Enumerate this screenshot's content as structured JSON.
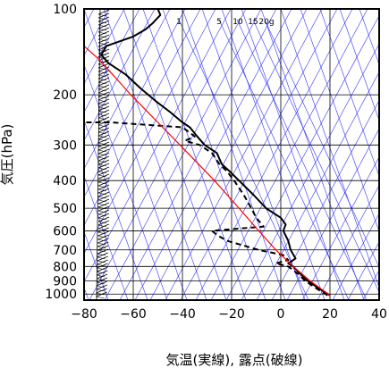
{
  "chart_data": {
    "type": "line",
    "subtype": "skew-t log-p sounding",
    "xlabel": "気温(実線), 露点(破線)",
    "ylabel": "気圧(hPa)",
    "xlim": [
      -80,
      40
    ],
    "ylim": [
      1050,
      100
    ],
    "y_scale": "log",
    "x_ticks": [
      -80,
      -60,
      -40,
      -20,
      0,
      20,
      40
    ],
    "x_tick_labels": [
      "−80",
      "−60",
      "−40",
      "−20",
      "0",
      "20",
      "40"
    ],
    "y_ticks": [
      100,
      200,
      300,
      400,
      500,
      600,
      700,
      800,
      900,
      1000
    ],
    "y_tick_labels": [
      "100",
      "200",
      "300",
      "400",
      "500",
      "600",
      "700",
      "800",
      "900",
      "1000"
    ],
    "mixing_ratio_labels": [
      "1",
      "5",
      "10",
      "15",
      "20g"
    ],
    "colors": {
      "grid": "#000000",
      "background_lines": "#3333ff",
      "parcel_curve": "#ff0000",
      "temperature": "#000000",
      "dewpoint": "#000000"
    },
    "series": [
      {
        "style": "solid",
        "points": [
          {
            "p": 1010,
            "t": 20
          },
          {
            "p": 950,
            "t": 15
          },
          {
            "p": 900,
            "t": 11
          },
          {
            "p": 850,
            "t": 8
          },
          {
            "p": 800,
            "t": 5
          },
          {
            "p": 780,
            "t": 3
          },
          {
            "p": 750,
            "t": 6
          },
          {
            "p": 700,
            "t": 4
          },
          {
            "p": 650,
            "t": 3
          },
          {
            "p": 600,
            "t": 1
          },
          {
            "p": 570,
            "t": 2
          },
          {
            "p": 540,
            "t": 0
          },
          {
            "p": 500,
            "t": -6
          },
          {
            "p": 450,
            "t": -11
          },
          {
            "p": 400,
            "t": -17
          },
          {
            "p": 370,
            "t": -21
          },
          {
            "p": 350,
            "t": -24
          },
          {
            "p": 320,
            "t": -26
          },
          {
            "p": 300,
            "t": -31
          },
          {
            "p": 280,
            "t": -34
          },
          {
            "p": 260,
            "t": -37
          },
          {
            "p": 250,
            "t": -40
          },
          {
            "p": 230,
            "t": -45
          },
          {
            "p": 210,
            "t": -51
          },
          {
            "p": 190,
            "t": -57
          },
          {
            "p": 170,
            "t": -63
          },
          {
            "p": 155,
            "t": -70
          },
          {
            "p": 145,
            "t": -73
          },
          {
            "p": 135,
            "t": -71
          },
          {
            "p": 125,
            "t": -60
          },
          {
            "p": 118,
            "t": -55
          },
          {
            "p": 112,
            "t": -52
          },
          {
            "p": 105,
            "t": -49
          },
          {
            "p": 100,
            "t": -50
          }
        ]
      },
      {
        "style": "dashed",
        "points": [
          {
            "p": 1010,
            "t": 19
          },
          {
            "p": 950,
            "t": 14
          },
          {
            "p": 900,
            "t": 10
          },
          {
            "p": 850,
            "t": 7
          },
          {
            "p": 800,
            "t": 3
          },
          {
            "p": 780,
            "t": -2
          },
          {
            "p": 760,
            "t": 3
          },
          {
            "p": 730,
            "t": 1
          },
          {
            "p": 700,
            "t": -9
          },
          {
            "p": 680,
            "t": -14
          },
          {
            "p": 650,
            "t": -22
          },
          {
            "p": 620,
            "t": -26
          },
          {
            "p": 600,
            "t": -28
          },
          {
            "p": 580,
            "t": -7
          },
          {
            "p": 540,
            "t": -10
          },
          {
            "p": 500,
            "t": -12
          },
          {
            "p": 450,
            "t": -15
          },
          {
            "p": 400,
            "t": -19
          },
          {
            "p": 370,
            "t": -22
          },
          {
            "p": 350,
            "t": -25
          },
          {
            "p": 320,
            "t": -28
          },
          {
            "p": 300,
            "t": -33
          },
          {
            "p": 290,
            "t": -39
          },
          {
            "p": 280,
            "t": -35
          },
          {
            "p": 260,
            "t": -40
          },
          {
            "p": 250,
            "t": -69
          },
          {
            "p": 250,
            "t": -85
          }
        ]
      },
      {
        "style": "solid-red",
        "points": [
          {
            "p": 1010,
            "t": 20
          },
          {
            "p": 900,
            "t": 12
          },
          {
            "p": 800,
            "t": 5
          },
          {
            "p": 700,
            "t": -2
          },
          {
            "p": 600,
            "t": -9
          },
          {
            "p": 500,
            "t": -17
          },
          {
            "p": 400,
            "t": -27
          },
          {
            "p": 300,
            "t": -41
          },
          {
            "p": 250,
            "t": -50
          },
          {
            "p": 200,
            "t": -61
          },
          {
            "p": 150,
            "t": -74
          },
          {
            "p": 135,
            "t": -80
          }
        ]
      }
    ]
  }
}
